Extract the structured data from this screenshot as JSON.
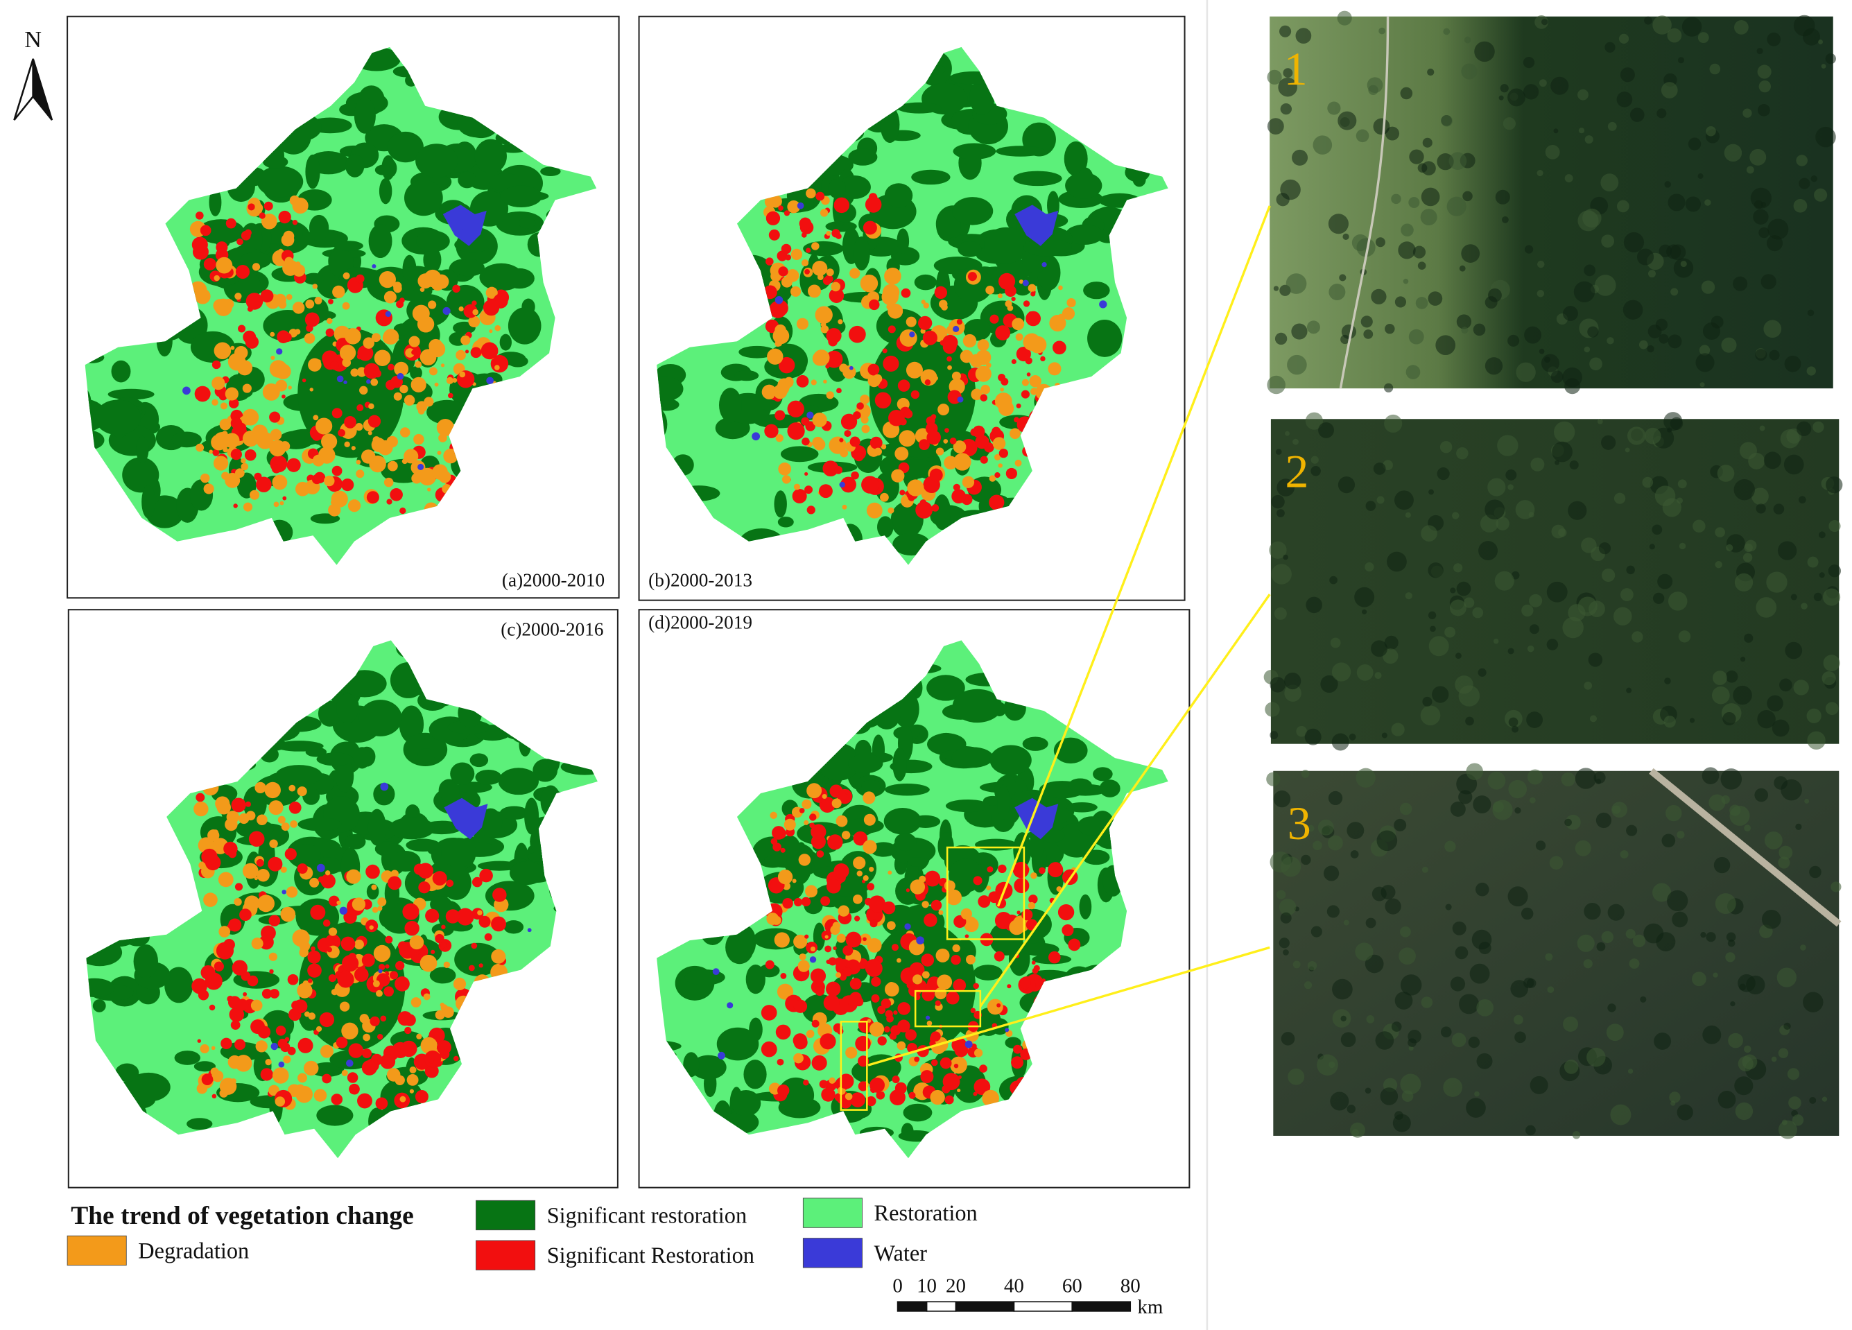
{
  "north_arrow": {
    "label": "N"
  },
  "panels": [
    {
      "label": "(a)2000-2010"
    },
    {
      "label": "(b)2000-2013"
    },
    {
      "label": "(c)2000-2016"
    },
    {
      "label": "(d)2000-2019"
    }
  ],
  "legend": {
    "title": "The trend of vegetation change",
    "items": [
      {
        "label": "Degradation",
        "color": "#f39a1a"
      },
      {
        "label": "Significant restoration",
        "color": "#077414"
      },
      {
        "label": "Significant Restoration",
        "color": "#f20f0f"
      },
      {
        "label": "Restoration",
        "color": "#5cf07a"
      },
      {
        "label": "Water",
        "color": "#3a3ad8"
      }
    ]
  },
  "scale_bar": {
    "ticks": [
      0,
      10,
      20,
      40,
      60,
      80
    ],
    "unit": "km"
  },
  "insets": [
    {
      "label": "1"
    },
    {
      "label": "2"
    },
    {
      "label": "3"
    }
  ]
}
